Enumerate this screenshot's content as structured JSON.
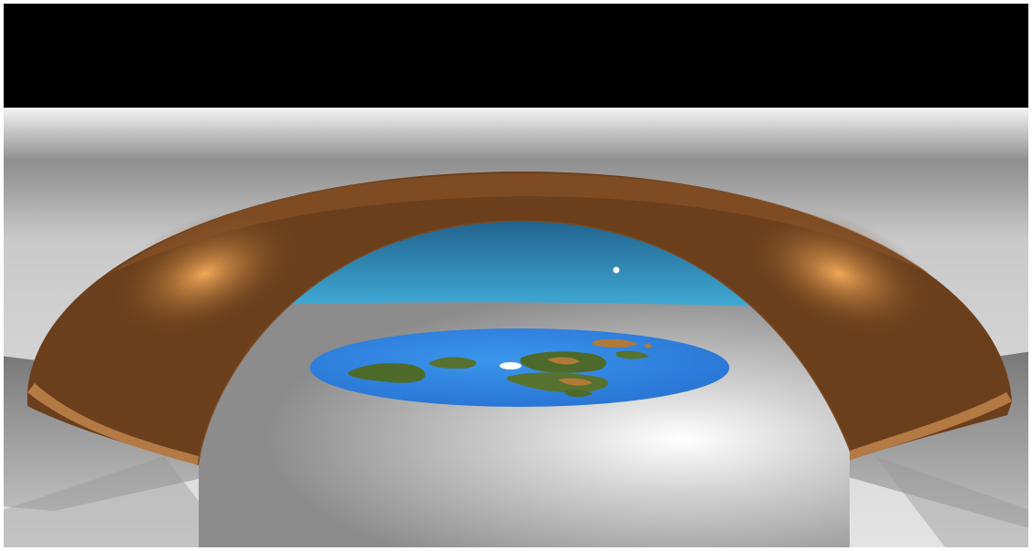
{
  "scene": {
    "subject": "flat-earth-dome-cutaway",
    "colors": {
      "sky": "#000000",
      "ground_light": "#e2e2e2",
      "ground_dark": "#7a7a7a",
      "dome_shell": "#6b3f1c",
      "dome_highlight": "#e8a050",
      "dome_rim": "#a8703e",
      "inner_sky": "#3a9ec8",
      "ocean": "#2f86e0",
      "land_green": "#4e6a2a",
      "land_brown": "#b07a38",
      "ice": "#ffffff",
      "sun": "#ffffff"
    }
  }
}
